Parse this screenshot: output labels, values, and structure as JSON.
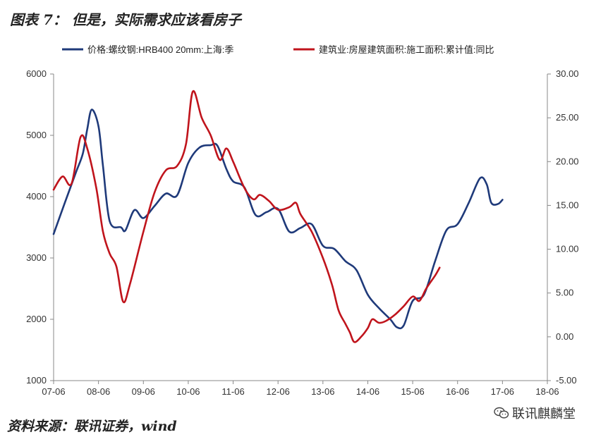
{
  "figure_title": "图表 7：  但是，实际需求应该看房子",
  "source": "资料来源：联讯证券，wind",
  "watermark": "联讯麒麟堂",
  "colors": {
    "series1": "#1f3a7a",
    "series2": "#c0141c",
    "axis": "#888888"
  },
  "chart_data": {
    "type": "line",
    "x_ticks": [
      "07-06",
      "08-06",
      "09-06",
      "10-06",
      "11-06",
      "12-06",
      "13-06",
      "14-06",
      "15-06",
      "16-06",
      "17-06",
      "18-06"
    ],
    "x_range": [
      2007.5,
      2018.5
    ],
    "y_left": {
      "min": 1000,
      "max": 6000,
      "ticks": [
        "1000",
        "2000",
        "3000",
        "4000",
        "5000",
        "6000"
      ]
    },
    "y_right": {
      "min": -5,
      "max": 30,
      "ticks": [
        "-5.00",
        "0.00",
        "5.00",
        "10.00",
        "15.00",
        "20.00",
        "25.00",
        "30.00"
      ]
    },
    "legend_position": "top",
    "series": [
      {
        "name": "价格:螺纹钢:HRB400 20mm:上海:季",
        "axis": "left",
        "color": "#1f3a7a",
        "points": [
          [
            2007.5,
            3390
          ],
          [
            2007.75,
            3900
          ],
          [
            2008.0,
            4400
          ],
          [
            2008.15,
            4700
          ],
          [
            2008.25,
            5100
          ],
          [
            2008.35,
            5420
          ],
          [
            2008.5,
            5150
          ],
          [
            2008.6,
            4500
          ],
          [
            2008.75,
            3600
          ],
          [
            2009.0,
            3500
          ],
          [
            2009.1,
            3450
          ],
          [
            2009.3,
            3780
          ],
          [
            2009.5,
            3650
          ],
          [
            2009.75,
            3850
          ],
          [
            2010.0,
            4050
          ],
          [
            2010.25,
            4020
          ],
          [
            2010.5,
            4550
          ],
          [
            2010.75,
            4800
          ],
          [
            2011.0,
            4840
          ],
          [
            2011.15,
            4830
          ],
          [
            2011.35,
            4450
          ],
          [
            2011.5,
            4250
          ],
          [
            2011.75,
            4150
          ],
          [
            2012.0,
            3700
          ],
          [
            2012.25,
            3750
          ],
          [
            2012.5,
            3800
          ],
          [
            2012.75,
            3430
          ],
          [
            2013.0,
            3490
          ],
          [
            2013.25,
            3550
          ],
          [
            2013.5,
            3200
          ],
          [
            2013.75,
            3150
          ],
          [
            2014.0,
            2950
          ],
          [
            2014.25,
            2800
          ],
          [
            2014.5,
            2400
          ],
          [
            2014.75,
            2180
          ],
          [
            2015.0,
            2000
          ],
          [
            2015.15,
            1870
          ],
          [
            2015.3,
            1900
          ],
          [
            2015.5,
            2300
          ],
          [
            2015.75,
            2400
          ],
          [
            2016.0,
            2950
          ],
          [
            2016.25,
            3450
          ],
          [
            2016.5,
            3550
          ],
          [
            2016.75,
            3900
          ],
          [
            2017.0,
            4300
          ],
          [
            2017.15,
            4200
          ],
          [
            2017.25,
            3900
          ],
          [
            2017.4,
            3880
          ],
          [
            2017.5,
            3950
          ]
        ]
      },
      {
        "name": "建筑业:房屋建筑面积:施工面积:累计值:同比",
        "axis": "right",
        "color": "#c0141c",
        "points": [
          [
            2007.5,
            16.8
          ],
          [
            2007.7,
            18.3
          ],
          [
            2007.9,
            17.5
          ],
          [
            2008.1,
            22.8
          ],
          [
            2008.25,
            21.5
          ],
          [
            2008.45,
            17.0
          ],
          [
            2008.6,
            12.0
          ],
          [
            2008.75,
            9.5
          ],
          [
            2008.9,
            8.0
          ],
          [
            2009.05,
            4.0
          ],
          [
            2009.2,
            6.0
          ],
          [
            2009.5,
            12.0
          ],
          [
            2009.75,
            16.5
          ],
          [
            2010.0,
            19.0
          ],
          [
            2010.25,
            19.5
          ],
          [
            2010.45,
            22.0
          ],
          [
            2010.6,
            28.0
          ],
          [
            2010.8,
            25.0
          ],
          [
            2011.0,
            23.0
          ],
          [
            2011.2,
            20.2
          ],
          [
            2011.35,
            21.5
          ],
          [
            2011.5,
            20.0
          ],
          [
            2011.75,
            17.0
          ],
          [
            2011.95,
            15.7
          ],
          [
            2012.1,
            16.2
          ],
          [
            2012.3,
            15.5
          ],
          [
            2012.5,
            14.5
          ],
          [
            2012.75,
            14.8
          ],
          [
            2012.9,
            15.3
          ],
          [
            2013.0,
            14.0
          ],
          [
            2013.25,
            12.0
          ],
          [
            2013.5,
            9.0
          ],
          [
            2013.7,
            6.0
          ],
          [
            2013.85,
            3.0
          ],
          [
            2014.0,
            1.5
          ],
          [
            2014.1,
            0.5
          ],
          [
            2014.2,
            -0.6
          ],
          [
            2014.35,
            0.0
          ],
          [
            2014.5,
            1.0
          ],
          [
            2014.6,
            2.0
          ],
          [
            2014.75,
            1.6
          ],
          [
            2014.9,
            1.8
          ],
          [
            2015.1,
            2.5
          ],
          [
            2015.3,
            3.5
          ],
          [
            2015.5,
            4.6
          ],
          [
            2015.65,
            4.1
          ],
          [
            2015.8,
            5.5
          ],
          [
            2016.0,
            7.0
          ],
          [
            2016.1,
            7.9
          ]
        ]
      }
    ]
  }
}
